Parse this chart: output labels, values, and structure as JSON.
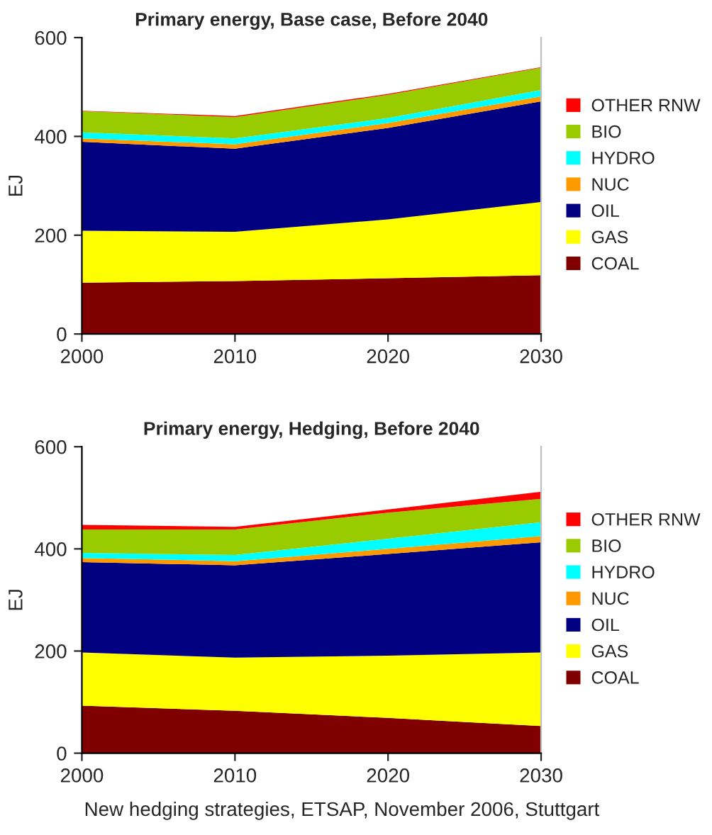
{
  "chart_data": [
    {
      "type": "area",
      "stacked": true,
      "title": "Primary energy, Base case, Before 2040",
      "ylabel": "EJ",
      "x": [
        2000,
        2010,
        2020,
        2030
      ],
      "xlim": [
        2000,
        2030
      ],
      "xticks": [
        2000,
        2010,
        2020,
        2030
      ],
      "ylim": [
        0,
        600
      ],
      "yticks": [
        0,
        200,
        400,
        600
      ],
      "legend": "right",
      "grid": false,
      "series": [
        {
          "name": "COAL",
          "color": "#800000",
          "values": [
            104,
            107,
            113,
            119
          ]
        },
        {
          "name": "GAS",
          "color": "#ffff00",
          "values": [
            105,
            100,
            119,
            148
          ]
        },
        {
          "name": "OIL",
          "color": "#000080",
          "values": [
            180,
            168,
            185,
            204
          ]
        },
        {
          "name": "NUC",
          "color": "#ff9900",
          "values": [
            7,
            9,
            10,
            10
          ]
        },
        {
          "name": "HYDRO",
          "color": "#00ffff",
          "values": [
            12,
            12,
            10,
            13
          ]
        },
        {
          "name": "BIO",
          "color": "#99cc00",
          "values": [
            43,
            43,
            47,
            45
          ]
        },
        {
          "name": "OTHER RNW",
          "color": "#ff0000",
          "values": [
            1,
            2,
            2,
            1
          ]
        }
      ]
    },
    {
      "type": "area",
      "stacked": true,
      "title": "Primary energy, Hedging, Before 2040",
      "ylabel": "EJ",
      "x": [
        2000,
        2010,
        2020,
        2030
      ],
      "xlim": [
        2000,
        2030
      ],
      "xticks": [
        2000,
        2010,
        2020,
        2030
      ],
      "ylim": [
        0,
        600
      ],
      "yticks": [
        0,
        200,
        400,
        600
      ],
      "legend": "right",
      "grid": false,
      "annotations": [
        "New hedging strategies, ETSAP, November 2006, Stuttgart"
      ],
      "series": [
        {
          "name": "COAL",
          "color": "#800000",
          "values": [
            93,
            83,
            69,
            53
          ]
        },
        {
          "name": "GAS",
          "color": "#ffff00",
          "values": [
            104,
            104,
            122,
            144
          ]
        },
        {
          "name": "OIL",
          "color": "#000080",
          "values": [
            177,
            181,
            199,
            216
          ]
        },
        {
          "name": "NUC",
          "color": "#ff9900",
          "values": [
            8,
            8,
            10,
            12
          ]
        },
        {
          "name": "HYDRO",
          "color": "#00ffff",
          "values": [
            10,
            12,
            20,
            27
          ]
        },
        {
          "name": "BIO",
          "color": "#99cc00",
          "values": [
            46,
            50,
            51,
            46
          ]
        },
        {
          "name": "OTHER RNW",
          "color": "#ff0000",
          "values": [
            9,
            5,
            6,
            14
          ]
        }
      ]
    }
  ]
}
